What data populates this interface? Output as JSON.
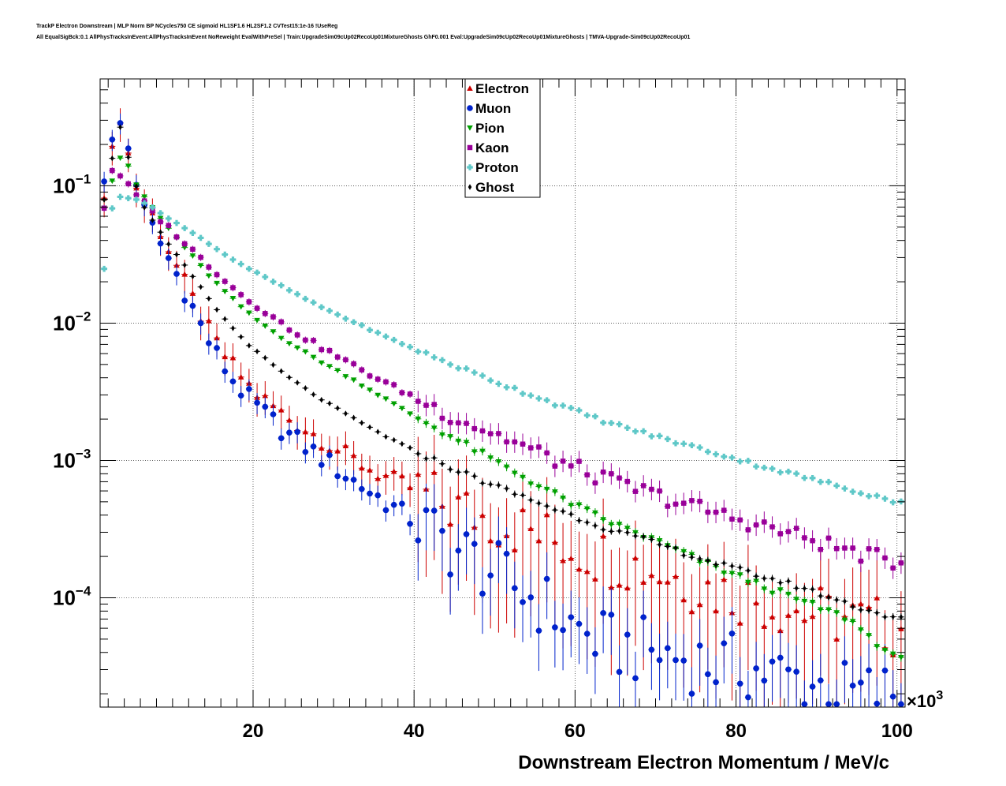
{
  "header": {
    "title_line1": "TrackP Electron Downstream | MLP Norm BP NCycles750 CE sigmoid HL1SF1.6 HL2SF1.2 CVTest15:1e-16 !UseReg",
    "title_line2": "All EqualSigBck:0.1 AllPhysTracksInEvent:AllPhysTracksInEvent NoReweight EvalWithPreSel | Train:UpgradeSim09cUp02RecoUp01MixtureGhosts GhF0.001 Eval:UpgradeSim09cUp02RecoUp01MixtureGhosts | TMVA-Upgrade-Sim09cUp02RecoUp01"
  },
  "chart_data": {
    "type": "scatter",
    "xlabel": "Downstream Electron Momentum / MeV/c",
    "x_multiplier_label": "×10",
    "x_multiplier_exp": "3",
    "xlim": [
      1,
      101
    ],
    "ylim": [
      1.6e-05,
      0.6
    ],
    "y_scale": "log",
    "x_ticks": [
      {
        "value": 20,
        "label": "20"
      },
      {
        "value": 40,
        "label": "40"
      },
      {
        "value": 60,
        "label": "60"
      },
      {
        "value": 80,
        "label": "80"
      },
      {
        "value": 100,
        "label": "100"
      }
    ],
    "y_ticks": [
      {
        "value": 0.1,
        "base": "10",
        "exp": "−1"
      },
      {
        "value": 0.01,
        "base": "10",
        "exp": "−2"
      },
      {
        "value": 0.001,
        "base": "10",
        "exp": "−3"
      },
      {
        "value": 0.0001,
        "base": "10",
        "exp": "−4"
      }
    ],
    "grid": true,
    "legend_position": "top-center",
    "series": [
      {
        "name": "Electron",
        "color": "#cc0000",
        "marker": "triangle-up",
        "anchors": [
          [
            1.5,
            0.095
          ],
          [
            2.5,
            0.17
          ],
          [
            3.5,
            0.33
          ],
          [
            4.5,
            0.17
          ],
          [
            5.5,
            0.1
          ],
          [
            6.5,
            0.075
          ],
          [
            8,
            0.055
          ],
          [
            10,
            0.03
          ],
          [
            12,
            0.017
          ],
          [
            14,
            0.01
          ],
          [
            16,
            0.0063
          ],
          [
            18,
            0.0045
          ],
          [
            20,
            0.0032
          ],
          [
            24,
            0.0021
          ],
          [
            28,
            0.0015
          ],
          [
            32,
            0.00105
          ],
          [
            36,
            0.00078
          ],
          [
            40,
            0.00062
          ],
          [
            44,
            0.00047
          ],
          [
            48,
            0.0004
          ],
          [
            52,
            0.00034
          ],
          [
            56,
            0.00028
          ],
          [
            60,
            0.00023
          ],
          [
            64,
            0.0002
          ],
          [
            70,
            0.00016
          ],
          [
            76,
            0.00012
          ],
          [
            82,
            0.0001
          ],
          [
            88,
            8e-05
          ],
          [
            94,
            7e-05
          ],
          [
            100,
            6e-05
          ]
        ],
        "jitter": 0.45,
        "err": 0.55
      },
      {
        "name": "Muon",
        "color": "#0022cc",
        "marker": "circle",
        "anchors": [
          [
            1.5,
            0.12
          ],
          [
            2.5,
            0.2
          ],
          [
            3.5,
            0.28
          ],
          [
            4.5,
            0.19
          ],
          [
            5.5,
            0.11
          ],
          [
            6.5,
            0.065
          ],
          [
            8,
            0.043
          ],
          [
            10,
            0.026
          ],
          [
            12,
            0.015
          ],
          [
            14,
            0.0083
          ],
          [
            16,
            0.0052
          ],
          [
            18,
            0.0035
          ],
          [
            20,
            0.0026
          ],
          [
            24,
            0.0016
          ],
          [
            28,
            0.0011
          ],
          [
            32,
            0.00074
          ],
          [
            36,
            0.00052
          ],
          [
            40,
            0.00036
          ],
          [
            44,
            0.00025
          ],
          [
            48,
            0.00018
          ],
          [
            52,
            0.000125
          ],
          [
            56,
            9e-05
          ],
          [
            60,
            6e-05
          ],
          [
            64,
            4.5e-05
          ],
          [
            70,
            4e-05
          ],
          [
            76,
            3.4e-05
          ],
          [
            82,
            3e-05
          ],
          [
            88,
            2.5e-05
          ],
          [
            94,
            2e-05
          ],
          [
            100,
            2e-05
          ]
        ],
        "jitter": 0.5,
        "err": 0.35
      },
      {
        "name": "Pion",
        "color": "#00a000",
        "marker": "triangle-down",
        "anchors": [
          [
            1.5,
            0.07
          ],
          [
            2.5,
            0.11
          ],
          [
            3.5,
            0.16
          ],
          [
            4.5,
            0.14
          ],
          [
            5.5,
            0.1
          ],
          [
            6.5,
            0.083
          ],
          [
            8,
            0.063
          ],
          [
            10,
            0.045
          ],
          [
            12,
            0.033
          ],
          [
            14,
            0.024
          ],
          [
            16,
            0.018
          ],
          [
            18,
            0.014
          ],
          [
            20,
            0.011
          ],
          [
            24,
            0.0075
          ],
          [
            28,
            0.0054
          ],
          [
            32,
            0.004
          ],
          [
            36,
            0.0029
          ],
          [
            40,
            0.0021
          ],
          [
            44,
            0.00155
          ],
          [
            48,
            0.00115
          ],
          [
            52,
            0.00085
          ],
          [
            56,
            0.00063
          ],
          [
            60,
            0.00047
          ],
          [
            64,
            0.00036
          ],
          [
            70,
            0.00026
          ],
          [
            76,
            0.00018
          ],
          [
            82,
            0.00013
          ],
          [
            88,
            9.5e-05
          ],
          [
            94,
            7e-05
          ],
          [
            100,
            3.5e-05
          ]
        ],
        "jitter": 0.05,
        "err": 0.05
      },
      {
        "name": "Kaon",
        "color": "#990099",
        "marker": "square",
        "anchors": [
          [
            1.5,
            0.07
          ],
          [
            2.5,
            0.13
          ],
          [
            3.5,
            0.12
          ],
          [
            4.5,
            0.1
          ],
          [
            5.5,
            0.085
          ],
          [
            6.5,
            0.075
          ],
          [
            8,
            0.06
          ],
          [
            10,
            0.047
          ],
          [
            12,
            0.036
          ],
          [
            14,
            0.028
          ],
          [
            16,
            0.022
          ],
          [
            18,
            0.017
          ],
          [
            20,
            0.014
          ],
          [
            24,
            0.0095
          ],
          [
            28,
            0.0069
          ],
          [
            32,
            0.0051
          ],
          [
            36,
            0.0038
          ],
          [
            40,
            0.0029
          ],
          [
            44,
            0.0022
          ],
          [
            48,
            0.00175
          ],
          [
            52,
            0.0014
          ],
          [
            56,
            0.0011
          ],
          [
            60,
            0.00088
          ],
          [
            64,
            0.00072
          ],
          [
            70,
            0.00056
          ],
          [
            76,
            0.00044
          ],
          [
            82,
            0.00035
          ],
          [
            88,
            0.00028
          ],
          [
            94,
            0.00022
          ],
          [
            100,
            0.00018
          ]
        ],
        "jitter": 0.12,
        "err": 0.12
      },
      {
        "name": "Proton",
        "color": "#5fc8c8",
        "marker": "cross",
        "anchors": [
          [
            1.5,
            0.025
          ],
          [
            2.5,
            0.068
          ],
          [
            3.5,
            0.083
          ],
          [
            4.5,
            0.082
          ],
          [
            5.5,
            0.08
          ],
          [
            6.5,
            0.075
          ],
          [
            8,
            0.066
          ],
          [
            10,
            0.056
          ],
          [
            12,
            0.047
          ],
          [
            14,
            0.04
          ],
          [
            16,
            0.033
          ],
          [
            18,
            0.028
          ],
          [
            20,
            0.024
          ],
          [
            24,
            0.018
          ],
          [
            28,
            0.0135
          ],
          [
            32,
            0.0105
          ],
          [
            36,
            0.0082
          ],
          [
            40,
            0.0065
          ],
          [
            44,
            0.0052
          ],
          [
            48,
            0.0042
          ],
          [
            52,
            0.0034
          ],
          [
            56,
            0.0028
          ],
          [
            60,
            0.0023
          ],
          [
            64,
            0.0019
          ],
          [
            70,
            0.0015
          ],
          [
            76,
            0.0012
          ],
          [
            82,
            0.00095
          ],
          [
            88,
            0.00077
          ],
          [
            94,
            0.00062
          ],
          [
            100,
            0.0005
          ]
        ],
        "jitter": 0.03,
        "err": 0.03
      },
      {
        "name": "Ghost",
        "color": "#000000",
        "marker": "diamond",
        "anchors": [
          [
            1.5,
            0.08
          ],
          [
            2.5,
            0.16
          ],
          [
            3.5,
            0.27
          ],
          [
            4.5,
            0.16
          ],
          [
            5.5,
            0.1
          ],
          [
            6.5,
            0.07
          ],
          [
            8,
            0.05
          ],
          [
            10,
            0.034
          ],
          [
            12,
            0.024
          ],
          [
            14,
            0.0165
          ],
          [
            16,
            0.0115
          ],
          [
            18,
            0.0085
          ],
          [
            20,
            0.0065
          ],
          [
            24,
            0.0042
          ],
          [
            28,
            0.0029
          ],
          [
            32,
            0.0021
          ],
          [
            36,
            0.00155
          ],
          [
            40,
            0.00118
          ],
          [
            44,
            0.00092
          ],
          [
            48,
            0.00073
          ],
          [
            52,
            0.00059
          ],
          [
            56,
            0.00048
          ],
          [
            60,
            0.00039
          ],
          [
            64,
            0.00032
          ],
          [
            70,
            0.00025
          ],
          [
            76,
            0.00019
          ],
          [
            82,
            0.00015
          ],
          [
            88,
            0.00012
          ],
          [
            94,
            9e-05
          ],
          [
            100,
            7e-05
          ]
        ],
        "jitter": 0.04,
        "err": 0.04
      }
    ]
  }
}
